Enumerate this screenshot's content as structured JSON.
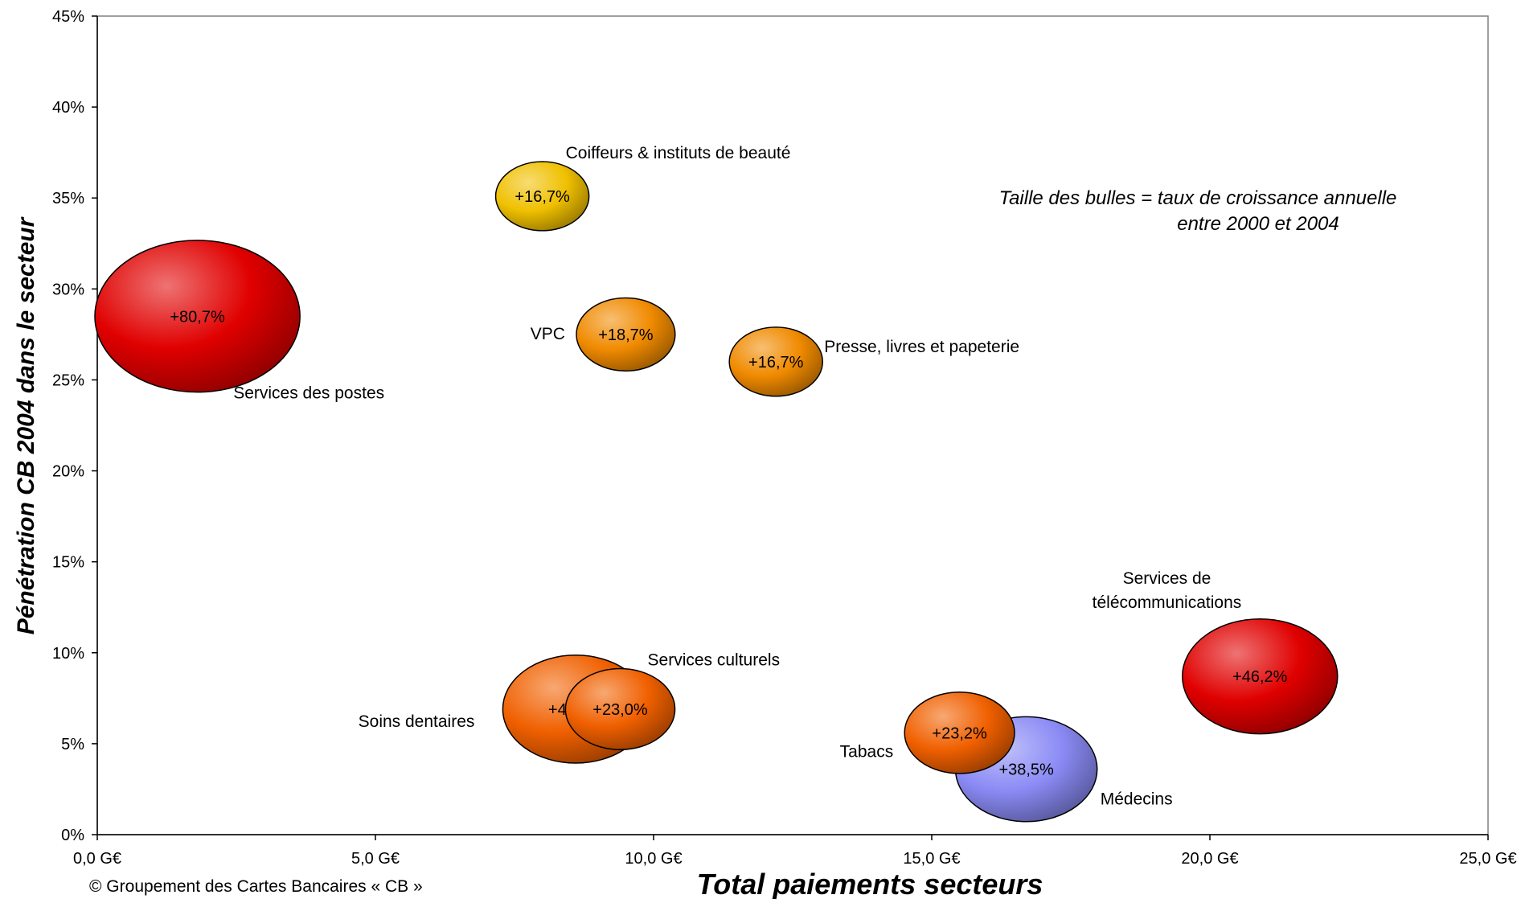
{
  "chart_data": {
    "type": "bubble",
    "xlabel": "Total paiements secteurs",
    "ylabel": "Pénétration CB 2004 dans le secteur",
    "xlim": [
      0,
      25
    ],
    "ylim": [
      0,
      45
    ],
    "x_ticks": [
      0,
      5,
      10,
      15,
      20,
      25
    ],
    "y_ticks": [
      0,
      5,
      10,
      15,
      20,
      25,
      30,
      35,
      40,
      45
    ],
    "x_tick_labels": [
      "0,0 G€",
      "5,0 G€",
      "10,0 G€",
      "15,0 G€",
      "20,0 G€",
      "25,0 G€"
    ],
    "y_tick_labels": [
      "0%",
      "5%",
      "10%",
      "15%",
      "20%",
      "25%",
      "30%",
      "35%",
      "40%",
      "45%"
    ],
    "grid": false,
    "legend": "none",
    "annotation_lines": [
      "Taille des bulles = taux de croissance annuelle",
      "entre 2000 et 2004"
    ],
    "size_meaning": "taux de croissance annuelle entre 2000 et 2004",
    "points": [
      {
        "name": "Services des postes",
        "x": 1.8,
        "y": 28.5,
        "size": 80.7,
        "label": "+80,7%",
        "color": "#e00000",
        "name_pos": "below-right"
      },
      {
        "name": "Coiffeurs & instituts de beauté",
        "x": 8.0,
        "y": 35.1,
        "size": 16.7,
        "label": "+16,7%",
        "color": "#f0c000",
        "name_pos": "above-right"
      },
      {
        "name": "VPC",
        "x": 9.5,
        "y": 27.5,
        "size": 18.7,
        "label": "+18,7%",
        "color": "#f08a00",
        "name_pos": "left"
      },
      {
        "name": "Presse, livres et papeterie",
        "x": 12.2,
        "y": 26.0,
        "size": 16.7,
        "label": "+16,7%",
        "color": "#f08a00",
        "name_pos": "right"
      },
      {
        "name": "Soins dentaires",
        "x": 8.6,
        "y": 6.9,
        "size": 40.8,
        "label": "+40,8%",
        "color": "#f06000",
        "name_pos": "left"
      },
      {
        "name": "Services culturels",
        "x": 9.4,
        "y": 6.9,
        "size": 23.0,
        "label": "+23,0%",
        "color": "#f06000",
        "name_pos": "above-right"
      },
      {
        "name": "Médecins",
        "x": 16.7,
        "y": 3.6,
        "size": 38.5,
        "label": "+38,5%",
        "color": "#8a8af5",
        "name_pos": "below-right"
      },
      {
        "name": "Tabacs",
        "x": 15.5,
        "y": 5.6,
        "size": 23.2,
        "label": "+23,2%",
        "color": "#f06000",
        "name_pos": "left"
      },
      {
        "name": "Services de télécommunications",
        "x": 20.9,
        "y": 8.7,
        "size": 46.2,
        "label": "+46,2%",
        "color": "#e00000",
        "name_pos": "above",
        "name_lines": [
          "Services de",
          "télécommunications"
        ]
      }
    ]
  },
  "footer": {
    "copyright": "© Groupement des Cartes Bancaires « CB »"
  }
}
